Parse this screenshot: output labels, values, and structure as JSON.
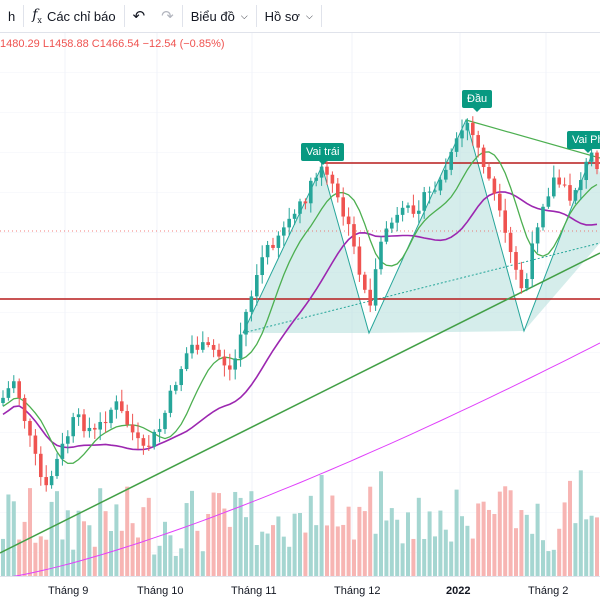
{
  "toolbar": {
    "partial_label": "h",
    "indicators_label": "Các chỉ báo",
    "chart_type_label": "Biểu đồ",
    "profile_label": "Hồ sơ"
  },
  "legend": {
    "high_value": "1480.29",
    "low_label": "L",
    "low_value": "1458.88",
    "close_label": "C",
    "close_value": "1466.54",
    "change": "−12.54 (−0.85%)"
  },
  "annotations": {
    "left_shoulder": "Vai trái",
    "head": "Đầu",
    "right_shoulder": "Vai Ph"
  },
  "x_axis": {
    "labels": [
      "Tháng 9",
      "Tháng 10",
      "Tháng 11",
      "Tháng 12",
      "2022",
      "Tháng 2"
    ]
  },
  "colors": {
    "up": "#26a69a",
    "down": "#ef5350",
    "ma_short": "#4caf50",
    "ma_mid": "#9c27b0",
    "ma_long": "#e040fb",
    "trendline": "#43a047",
    "neckline": "#b71c1c",
    "pattern_fill": "#b2dfdb"
  }
}
